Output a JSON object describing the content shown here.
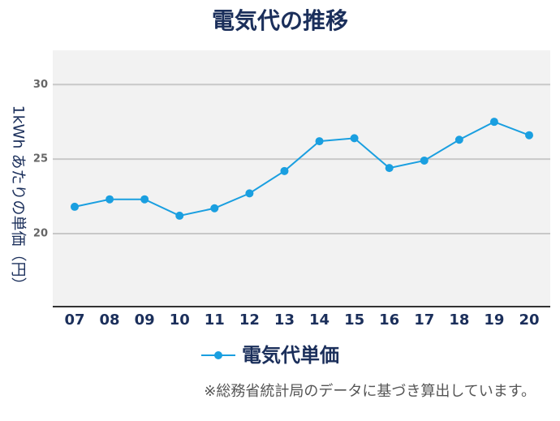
{
  "chart_data": {
    "type": "line",
    "title": "電気代の推移",
    "y_label": "1kWh あたりの単価（円）",
    "categories": [
      "07",
      "08",
      "09",
      "10",
      "11",
      "12",
      "13",
      "14",
      "15",
      "16",
      "17",
      "18",
      "19",
      "20"
    ],
    "series": [
      {
        "name": "電気代単価",
        "color": "#1a9fe0",
        "values": [
          21.8,
          22.3,
          22.3,
          21.2,
          21.7,
          22.7,
          24.2,
          26.2,
          26.4,
          24.4,
          24.9,
          26.3,
          27.5,
          26.6
        ]
      }
    ],
    "ylim": [
      15.1,
      32.3
    ],
    "yticks": [
      20,
      25,
      30
    ],
    "grid": true,
    "note": "※総務省統計局のデータに基づき算出しています。"
  }
}
